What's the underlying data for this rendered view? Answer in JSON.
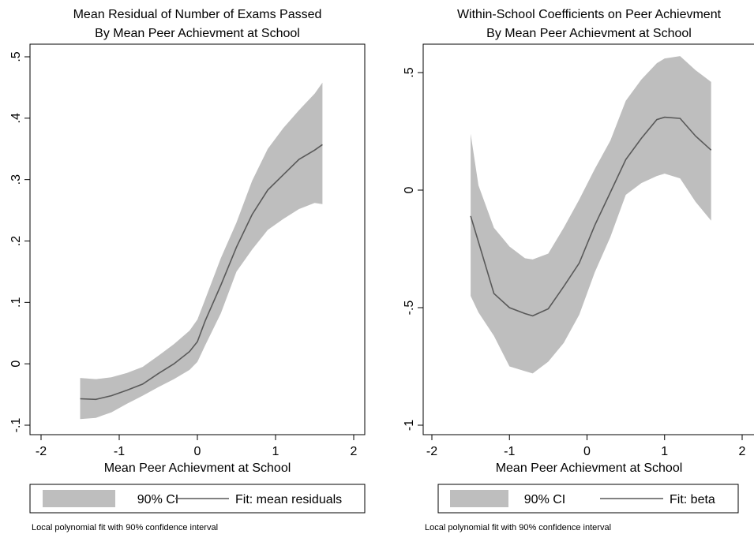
{
  "chart_data": [
    {
      "type": "area",
      "title": "Mean Residual of Number of Exams Passed",
      "subtitle": "By Mean Peer Achievment at School",
      "xlabel": "Mean Peer Achievment at School",
      "ylabel": "",
      "xlim": [
        -2,
        2
      ],
      "ylim": [
        -0.1,
        0.5
      ],
      "xticks": [
        -2,
        -1,
        0,
        1,
        2
      ],
      "xtick_labels": [
        "-2",
        "-1",
        "0",
        "1",
        "2"
      ],
      "yticks": [
        -0.1,
        0,
        0.1,
        0.2,
        0.3,
        0.4,
        0.5
      ],
      "ytick_labels": [
        "-.1",
        "0",
        ".1",
        ".2",
        ".3",
        ".4",
        ".5"
      ],
      "grid": false,
      "legend_position": "bottom",
      "legend": [
        "90% CI",
        "Fit: mean residuals"
      ],
      "note": "Local polynomial fit with 90% confidence interval",
      "x": [
        -1.5,
        -1.3,
        -1.1,
        -0.9,
        -0.7,
        -0.5,
        -0.3,
        -0.1,
        0.0,
        0.1,
        0.3,
        0.5,
        0.7,
        0.9,
        1.1,
        1.3,
        1.5,
        1.6
      ],
      "fit": [
        -0.057,
        -0.058,
        -0.052,
        -0.043,
        -0.033,
        -0.016,
        0.0,
        0.02,
        0.036,
        0.07,
        0.128,
        0.19,
        0.243,
        0.283,
        0.308,
        0.333,
        0.348,
        0.357
      ],
      "ci_lower": [
        -0.09,
        -0.088,
        -0.079,
        -0.065,
        -0.052,
        -0.038,
        -0.025,
        -0.01,
        0.003,
        0.03,
        0.082,
        0.15,
        0.186,
        0.218,
        0.236,
        0.252,
        0.262,
        0.26
      ],
      "ci_upper": [
        -0.023,
        -0.025,
        -0.022,
        -0.015,
        -0.005,
        0.013,
        0.032,
        0.054,
        0.072,
        0.105,
        0.172,
        0.23,
        0.298,
        0.35,
        0.384,
        0.413,
        0.44,
        0.458
      ]
    },
    {
      "type": "area",
      "title": "Within-School Coefficients on Peer Achievment",
      "subtitle": "By Mean Peer Achievment at School",
      "xlabel": "Mean Peer Achievment at School",
      "ylabel": "",
      "xlim": [
        -2,
        2
      ],
      "ylim": [
        -1,
        0.5
      ],
      "xticks": [
        -2,
        -1,
        0,
        1,
        2
      ],
      "xtick_labels": [
        "-2",
        "-1",
        "0",
        "1",
        "2"
      ],
      "yticks": [
        -1,
        -0.5,
        0,
        0.5
      ],
      "ytick_labels": [
        "-1",
        "-.5",
        "0",
        ".5"
      ],
      "grid": false,
      "legend_position": "bottom",
      "legend": [
        "90% CI",
        "Fit: beta"
      ],
      "note": "Local polynomial fit with 90% confidence interval",
      "x": [
        -1.5,
        -1.4,
        -1.2,
        -1.0,
        -0.8,
        -0.7,
        -0.5,
        -0.3,
        -0.1,
        0.1,
        0.3,
        0.5,
        0.7,
        0.9,
        1.0,
        1.2,
        1.4,
        1.6
      ],
      "fit": [
        -0.11,
        -0.22,
        -0.44,
        -0.5,
        -0.525,
        -0.535,
        -0.505,
        -0.41,
        -0.31,
        -0.15,
        -0.01,
        0.13,
        0.22,
        0.3,
        0.31,
        0.305,
        0.23,
        0.17
      ],
      "ci_lower": [
        -0.45,
        -0.52,
        -0.62,
        -0.75,
        -0.77,
        -0.78,
        -0.73,
        -0.65,
        -0.53,
        -0.35,
        -0.2,
        -0.02,
        0.03,
        0.06,
        0.07,
        0.05,
        -0.05,
        -0.13
      ],
      "ci_upper": [
        0.24,
        0.02,
        -0.16,
        -0.24,
        -0.29,
        -0.295,
        -0.27,
        -0.16,
        -0.04,
        0.09,
        0.21,
        0.38,
        0.47,
        0.54,
        0.56,
        0.57,
        0.51,
        0.46
      ]
    }
  ]
}
